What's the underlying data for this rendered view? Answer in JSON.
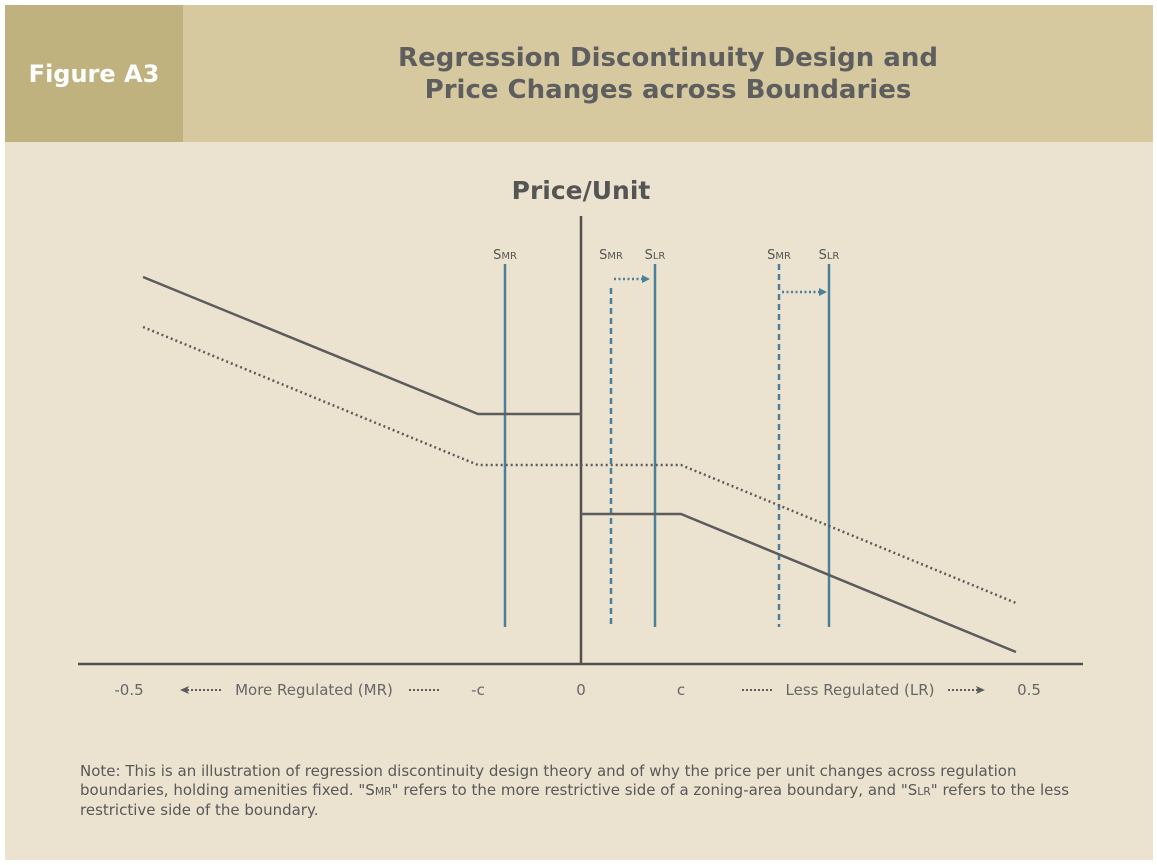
{
  "header": {
    "figure_label": "Figure A3",
    "title_line1": "Regression Discontinuity Design and",
    "title_line2": "Price Changes across Boundaries"
  },
  "diagram": {
    "y_axis_label": "Price/Unit",
    "x_ticks": [
      "-0.5",
      "-c",
      "0",
      "c",
      "0.5"
    ],
    "left_region_label": "More Regulated (MR)",
    "right_region_label": "Less Regulated (LR)",
    "boundary_labels": [
      {
        "prefix": "S",
        "sub": "MR"
      },
      {
        "prefix": "S",
        "sub": "MR"
      },
      {
        "prefix": "S",
        "sub": "LR"
      },
      {
        "prefix": "S",
        "sub": "MR"
      },
      {
        "prefix": "S",
        "sub": "LR"
      }
    ],
    "colors": {
      "price_line": "#5c5c5c",
      "boundary_line": "#4b7f9c",
      "axis": "#505050"
    }
  },
  "note": {
    "part1": "Note: This is an illustration of regression discontinuity design theory and of why the price per unit changes across regulation boundaries, holding amenities fixed. \"S",
    "smr_sub": "MR",
    "part2": "\" refers to the more restrictive side of a zoning-area boundary, and \"S",
    "slr_sub": "LR",
    "part3": "\" refers to the less restrictive side of the boundary."
  }
}
